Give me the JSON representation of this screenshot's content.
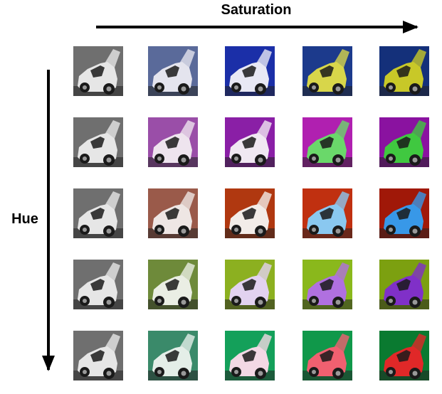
{
  "header": {
    "x_label": "Saturation",
    "y_label": "Hue"
  }
}
